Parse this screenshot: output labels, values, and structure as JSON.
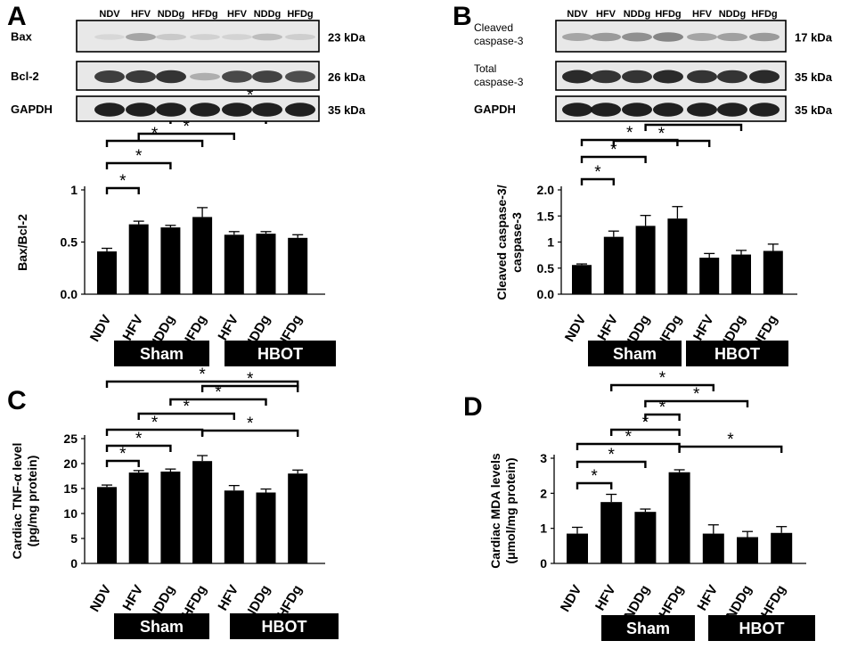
{
  "panel_labels": [
    "A",
    "B",
    "C",
    "D"
  ],
  "chart_data": [
    {
      "panel": "A",
      "type": "bar",
      "ylabel": "Bax/Bcl-2",
      "ylim": [
        0,
        1
      ],
      "yticks": [
        "0.0",
        "0.5",
        "1"
      ],
      "categories": [
        "NDV",
        "HFV",
        "NDDg",
        "HFDg",
        "HFV",
        "NDDg",
        "HFDg"
      ],
      "values": [
        0.41,
        0.67,
        0.64,
        0.74,
        0.57,
        0.58,
        0.54
      ],
      "errors": [
        0.03,
        0.03,
        0.02,
        0.09,
        0.03,
        0.02,
        0.03
      ],
      "groups": [
        {
          "name": "Sham"
        },
        {
          "name": "HBOT"
        }
      ],
      "significance": [
        {
          "a": 0,
          "b": 1,
          "label": "*"
        },
        {
          "a": 0,
          "b": 2,
          "label": "*"
        },
        {
          "a": 0,
          "b": 3,
          "label": "*"
        },
        {
          "a": 1,
          "b": 4,
          "label": "*"
        },
        {
          "a": 2,
          "b": 5,
          "label": "*"
        },
        {
          "a": 3,
          "b": 6,
          "label": "*"
        }
      ],
      "blot": {
        "lanes": [
          "NDV",
          "HFV",
          "NDDg",
          "HFDg",
          "HFV",
          "NDDg",
          "HFDg"
        ],
        "bands": [
          {
            "protein": "Bax",
            "kda": "23 kDa",
            "intensity": [
              0.05,
              0.3,
              0.12,
              0.08,
              0.07,
              0.18,
              0.1
            ]
          },
          {
            "protein": "Bcl-2",
            "kda": "26 kDa",
            "intensity": [
              0.8,
              0.82,
              0.85,
              0.25,
              0.75,
              0.78,
              0.72
            ]
          },
          {
            "protein": "GAPDH",
            "kda": "35 kDa",
            "intensity": [
              0.95,
              0.95,
              0.95,
              0.95,
              0.95,
              0.95,
              0.95
            ]
          }
        ]
      }
    },
    {
      "panel": "B",
      "type": "bar",
      "ylabel": "Cleaved caspase-3/ caspase-3",
      "ylim": [
        0,
        2
      ],
      "yticks": [
        "0.0",
        "0.5",
        "1",
        "1.5",
        "2.0"
      ],
      "categories": [
        "NDV",
        "HFV",
        "NDDg",
        "HFDg",
        "HFV",
        "NDDg",
        "HFDg"
      ],
      "values": [
        0.56,
        1.1,
        1.31,
        1.45,
        0.7,
        0.76,
        0.83
      ],
      "errors": [
        0.02,
        0.11,
        0.2,
        0.23,
        0.08,
        0.08,
        0.13
      ],
      "groups": [
        {
          "name": "Sham"
        },
        {
          "name": "HBOT"
        }
      ],
      "significance": [
        {
          "a": 0,
          "b": 1,
          "label": "*"
        },
        {
          "a": 0,
          "b": 2,
          "label": "*"
        },
        {
          "a": 0,
          "b": 3,
          "label": "*"
        },
        {
          "a": 1,
          "b": 4,
          "label": "*"
        },
        {
          "a": 2,
          "b": 5,
          "label": "*"
        },
        {
          "a": 3,
          "b": 6,
          "label": "*"
        }
      ],
      "blot": {
        "lanes": [
          "NDV",
          "HFV",
          "NDDg",
          "HFDg",
          "HFV",
          "NDDg",
          "HFDg"
        ],
        "bands": [
          {
            "protein": "Cleaved caspase-3",
            "kda": "17 kDa",
            "intensity": [
              0.3,
              0.35,
              0.4,
              0.45,
              0.3,
              0.32,
              0.35
            ]
          },
          {
            "protein": "Total caspase-3",
            "kda": "35 kDa",
            "intensity": [
              0.9,
              0.85,
              0.85,
              0.9,
              0.85,
              0.85,
              0.9
            ]
          },
          {
            "protein": "GAPDH",
            "kda": "35 kDa",
            "intensity": [
              0.95,
              0.95,
              0.95,
              0.95,
              0.95,
              0.95,
              0.95
            ]
          }
        ]
      }
    },
    {
      "panel": "C",
      "type": "bar",
      "ylabel": "Cardiac TNF-α level (pg/mg protein)",
      "ylim": [
        0,
        25
      ],
      "yticks": [
        "0",
        "5",
        "10",
        "15",
        "20",
        "25"
      ],
      "categories": [
        "NDV",
        "HFV",
        "NDDg",
        "HFDg",
        "HFV",
        "NDDg",
        "HFDg"
      ],
      "values": [
        15.3,
        18.2,
        18.4,
        20.5,
        14.6,
        14.2,
        18.0
      ],
      "errors": [
        0.4,
        0.4,
        0.5,
        1.1,
        1.0,
        0.7,
        0.7
      ],
      "groups": [
        {
          "name": "Sham"
        },
        {
          "name": "HBOT"
        }
      ],
      "significance": [
        {
          "a": 0,
          "b": 1,
          "label": "*"
        },
        {
          "a": 0,
          "b": 2,
          "label": "*"
        },
        {
          "a": 0,
          "b": 3,
          "label": "*"
        },
        {
          "a": 3,
          "b": 6,
          "label": "*"
        },
        {
          "a": 1,
          "b": 4,
          "label": "*"
        },
        {
          "a": 2,
          "b": 5,
          "label": "*"
        },
        {
          "a": 3,
          "b": 6,
          "label": "*"
        },
        {
          "a": 0,
          "b": 6,
          "label": "*"
        }
      ]
    },
    {
      "panel": "D",
      "type": "bar",
      "ylabel": "Cardiac MDA levels (μmol/mg protein)",
      "ylim": [
        0,
        3
      ],
      "yticks": [
        "0",
        "1",
        "2",
        "3"
      ],
      "categories": [
        "NDV",
        "HFV",
        "NDDg",
        "HFDg",
        "HFV",
        "NDDg",
        "HFDg"
      ],
      "values": [
        0.85,
        1.75,
        1.47,
        2.6,
        0.85,
        0.75,
        0.87
      ],
      "errors": [
        0.18,
        0.22,
        0.08,
        0.07,
        0.25,
        0.16,
        0.18
      ],
      "groups": [
        {
          "name": "Sham"
        },
        {
          "name": "HBOT"
        }
      ],
      "significance": [
        {
          "a": 0,
          "b": 1,
          "label": "*"
        },
        {
          "a": 0,
          "b": 2,
          "label": "*"
        },
        {
          "a": 0,
          "b": 3,
          "label": "*"
        },
        {
          "a": 3,
          "b": 6,
          "label": "*"
        },
        {
          "a": 1,
          "b": 3,
          "label": "*"
        },
        {
          "a": 2,
          "b": 3,
          "label": "*"
        },
        {
          "a": 2,
          "b": 5,
          "label": "*"
        },
        {
          "a": 1,
          "b": 4,
          "label": "*"
        }
      ]
    }
  ]
}
